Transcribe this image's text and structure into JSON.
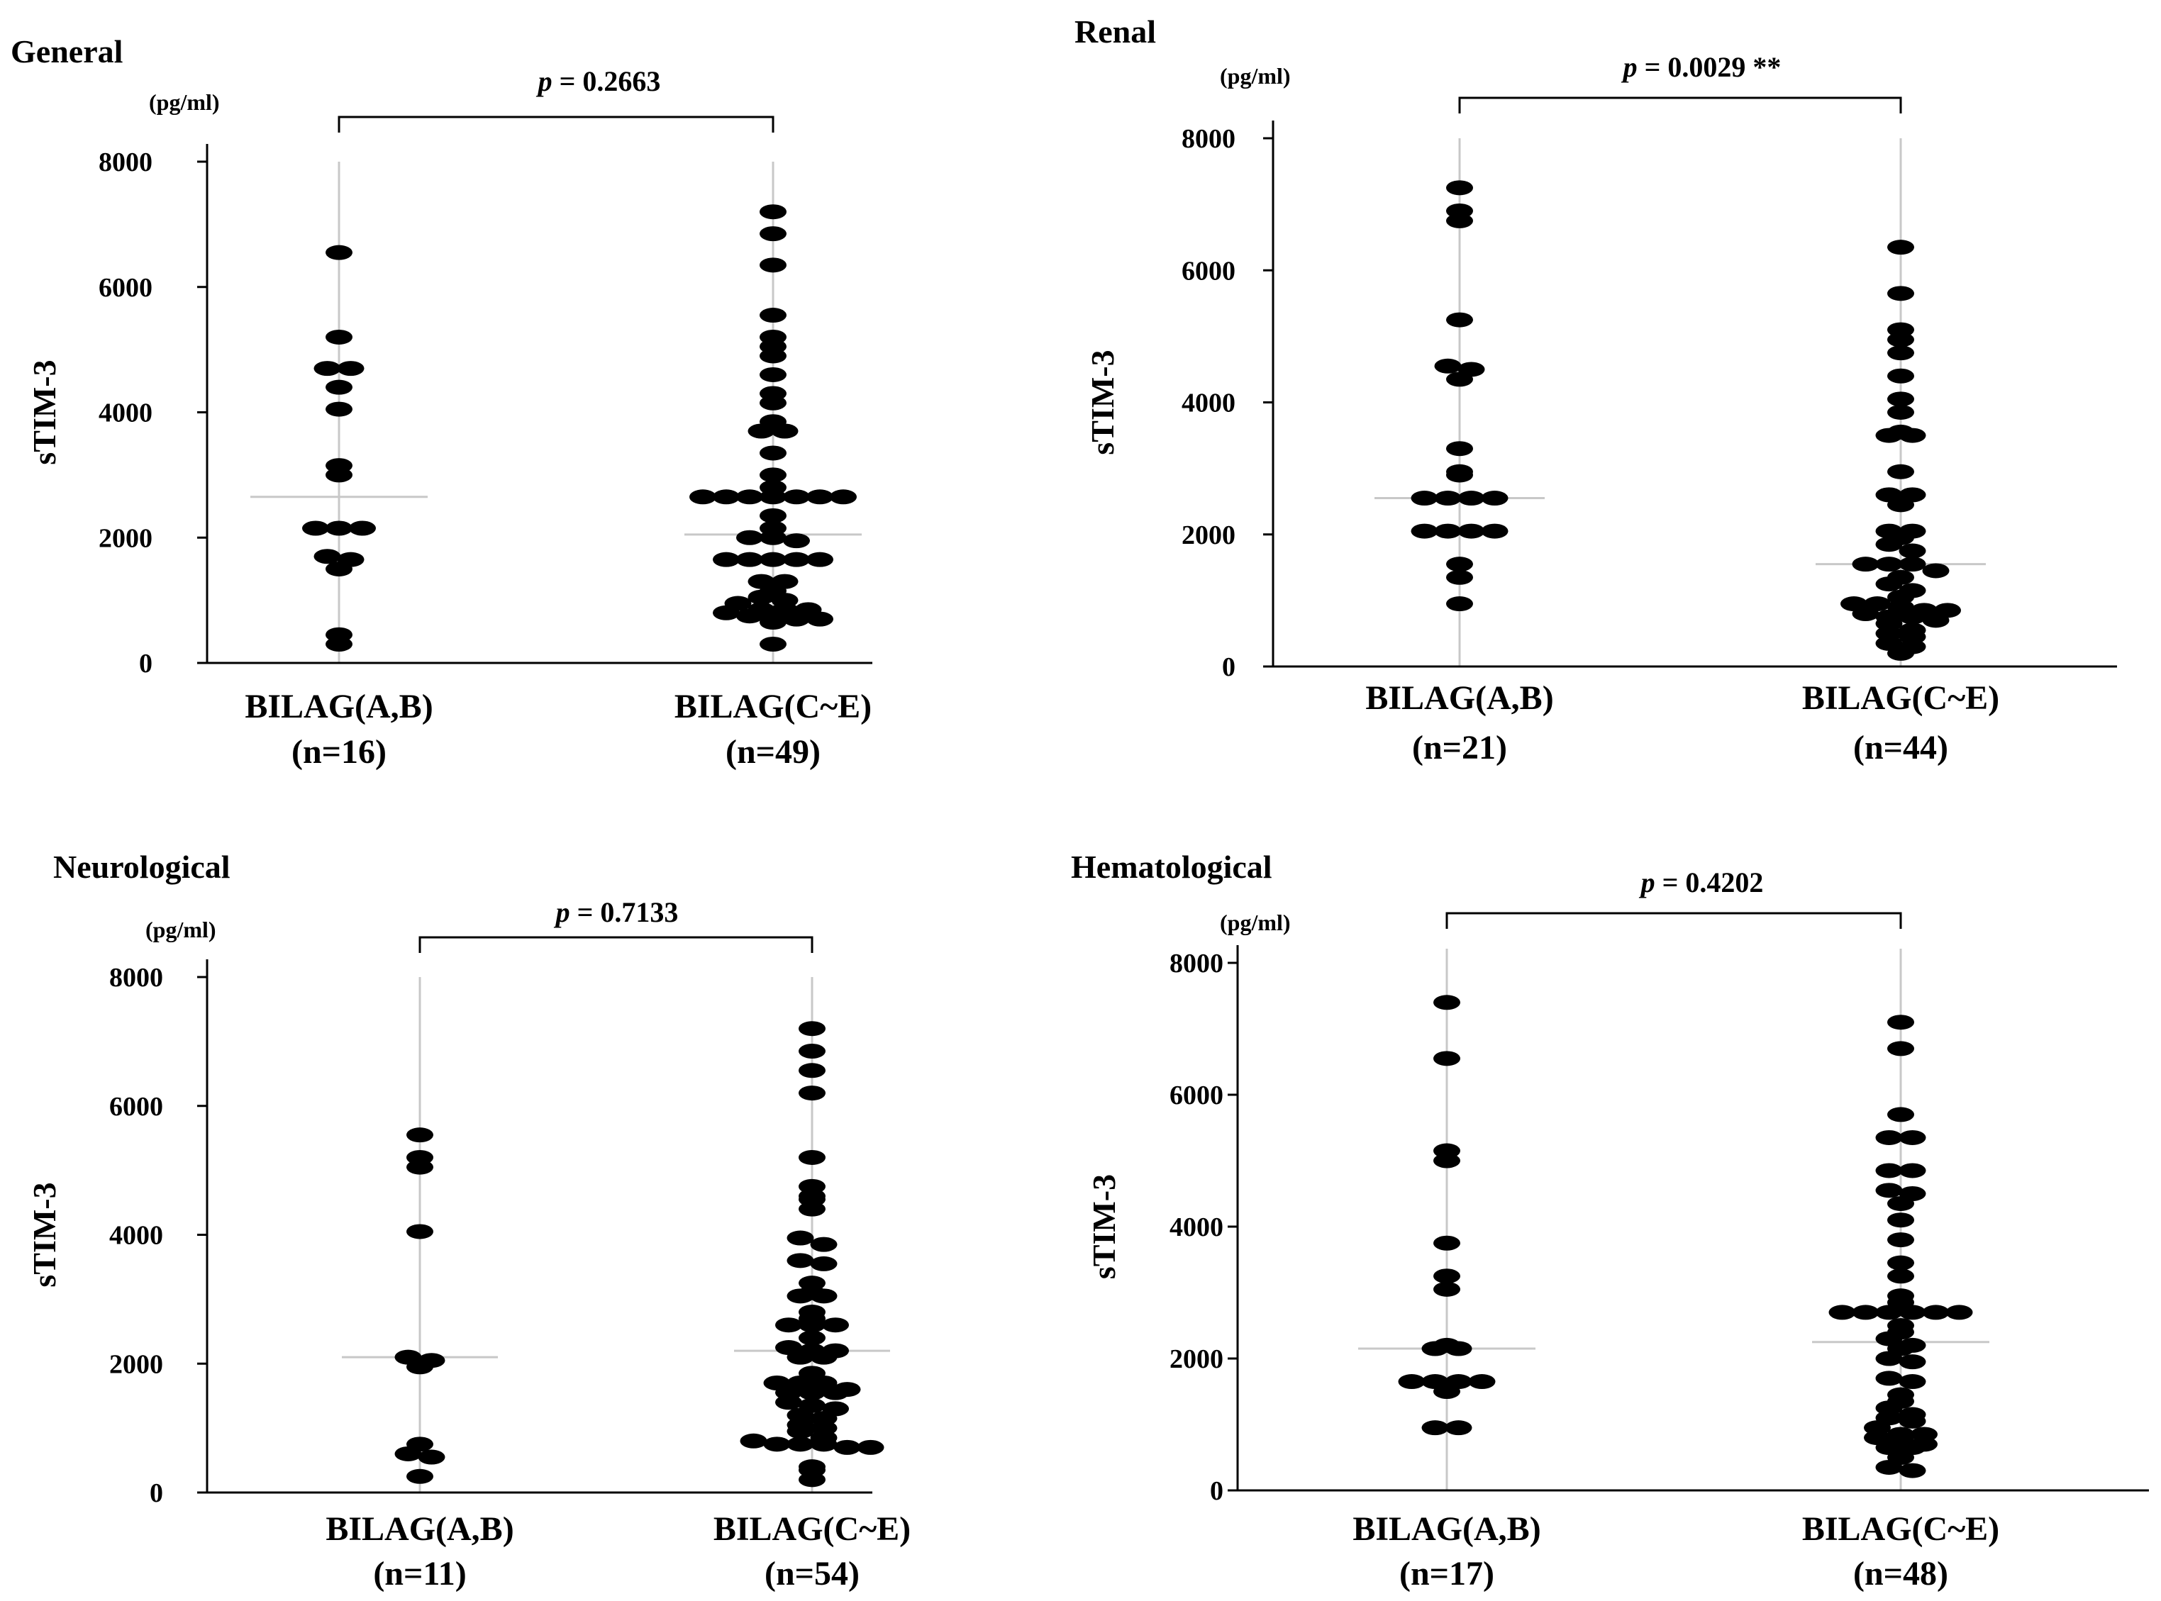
{
  "colors": {
    "ink": "#000000",
    "guide": "#c8c8c8",
    "median": "#c8c8c8",
    "background": "#ffffff"
  },
  "chart_data": [
    {
      "type": "scatter",
      "title": "General",
      "unit": "(pg/ml)",
      "ylabel": "sTIM-3",
      "ylim": [
        0,
        8000
      ],
      "yticks": [
        0,
        2000,
        4000,
        6000,
        8000
      ],
      "p_label": "p",
      "p_value": "= 0.2663",
      "groups": [
        {
          "name": "BILAG(A,B)",
          "n": "(n=16)",
          "median": 2650,
          "values": [
            6550,
            5200,
            4700,
            4700,
            4400,
            4050,
            3150,
            3000,
            2150,
            2150,
            2150,
            1700,
            1650,
            1500,
            450,
            300
          ]
        },
        {
          "name": "BILAG(C~E)",
          "n": "(n=49)",
          "median": 2050,
          "values": [
            7200,
            6850,
            6350,
            5550,
            5200,
            5050,
            4900,
            4600,
            4300,
            4150,
            3850,
            3700,
            3700,
            3350,
            3000,
            2800,
            2650,
            2650,
            2650,
            2650,
            2650,
            2650,
            2650,
            2350,
            2150,
            2000,
            2000,
            1950,
            1650,
            1650,
            1650,
            1650,
            1650,
            1300,
            1300,
            1150,
            1050,
            1000,
            950,
            850,
            850,
            850,
            800,
            750,
            700,
            700,
            700,
            650,
            300
          ]
        }
      ]
    },
    {
      "type": "scatter",
      "title": "Renal",
      "unit": "(pg/ml)",
      "ylabel": "sTIM-3",
      "ylim": [
        0,
        8000
      ],
      "yticks": [
        0,
        2000,
        4000,
        6000,
        8000
      ],
      "p_label": "p",
      "p_value": "= 0.0029 **",
      "groups": [
        {
          "name": "BILAG(A,B)",
          "n": "(n=21)",
          "median": 2550,
          "values": [
            7250,
            6900,
            6750,
            5250,
            4550,
            4500,
            4350,
            3300,
            2950,
            2900,
            2550,
            2550,
            2550,
            2550,
            2050,
            2050,
            2050,
            2050,
            1550,
            1350,
            950
          ]
        },
        {
          "name": "BILAG(C~E)",
          "n": "(n=44)",
          "median": 1550,
          "values": [
            6350,
            5650,
            5100,
            4950,
            4750,
            4400,
            4050,
            3850,
            3550,
            3500,
            3500,
            2950,
            2600,
            2600,
            2450,
            2050,
            2050,
            1950,
            1850,
            1750,
            1550,
            1550,
            1550,
            1450,
            1350,
            1250,
            1150,
            1050,
            950,
            950,
            900,
            850,
            850,
            800,
            750,
            750,
            700,
            650,
            550,
            500,
            450,
            350,
            300,
            200
          ]
        }
      ]
    },
    {
      "type": "scatter",
      "title": "Neurological",
      "unit": "(pg/ml)",
      "ylabel": "sTIM-3",
      "ylim": [
        0,
        8000
      ],
      "yticks": [
        0,
        2000,
        4000,
        6000,
        8000
      ],
      "p_label": "p",
      "p_value": "= 0.7133",
      "groups": [
        {
          "name": "BILAG(A,B)",
          "n": "(n=11)",
          "median": 2100,
          "values": [
            5550,
            5200,
            5050,
            4050,
            2100,
            2050,
            1950,
            750,
            600,
            550,
            250
          ]
        },
        {
          "name": "BILAG(C~E)",
          "n": "(n=54)",
          "median": 2200,
          "values": [
            7200,
            6850,
            6550,
            6200,
            5200,
            4750,
            4600,
            4550,
            4400,
            3950,
            3850,
            3600,
            3550,
            3250,
            3100,
            3050,
            3050,
            2800,
            2700,
            2600,
            2600,
            2600,
            2400,
            2250,
            2200,
            2200,
            2100,
            2100,
            1850,
            1700,
            1700,
            1700,
            1600,
            1550,
            1550,
            1550,
            1400,
            1350,
            1300,
            1200,
            1150,
            1050,
            1000,
            950,
            850,
            800,
            750,
            750,
            750,
            700,
            700,
            400,
            350,
            200
          ]
        }
      ]
    },
    {
      "type": "scatter",
      "title": "Hematological",
      "unit": "(pg/ml)",
      "ylabel": "sTIM-3",
      "ylim": [
        0,
        8000
      ],
      "yticks": [
        0,
        2000,
        4000,
        6000,
        8000
      ],
      "p_label": "p",
      "p_value": "= 0.4202",
      "groups": [
        {
          "name": "BILAG(A,B)",
          "n": "(n=17)",
          "median": 2150,
          "values": [
            7400,
            6550,
            5150,
            5000,
            3750,
            3250,
            3050,
            2200,
            2150,
            2150,
            1650,
            1650,
            1650,
            1650,
            1500,
            950,
            950
          ]
        },
        {
          "name": "BILAG(C~E)",
          "n": "(n=48)",
          "median": 2250,
          "values": [
            7100,
            6700,
            5700,
            5350,
            5350,
            4850,
            4850,
            4550,
            4500,
            4350,
            4100,
            3800,
            3450,
            3250,
            2950,
            2850,
            2700,
            2700,
            2700,
            2700,
            2700,
            2700,
            2500,
            2400,
            2300,
            2200,
            2150,
            2000,
            1950,
            1700,
            1650,
            1450,
            1350,
            1250,
            1150,
            1100,
            1050,
            950,
            850,
            850,
            800,
            750,
            700,
            650,
            650,
            500,
            350,
            300
          ]
        }
      ]
    }
  ]
}
